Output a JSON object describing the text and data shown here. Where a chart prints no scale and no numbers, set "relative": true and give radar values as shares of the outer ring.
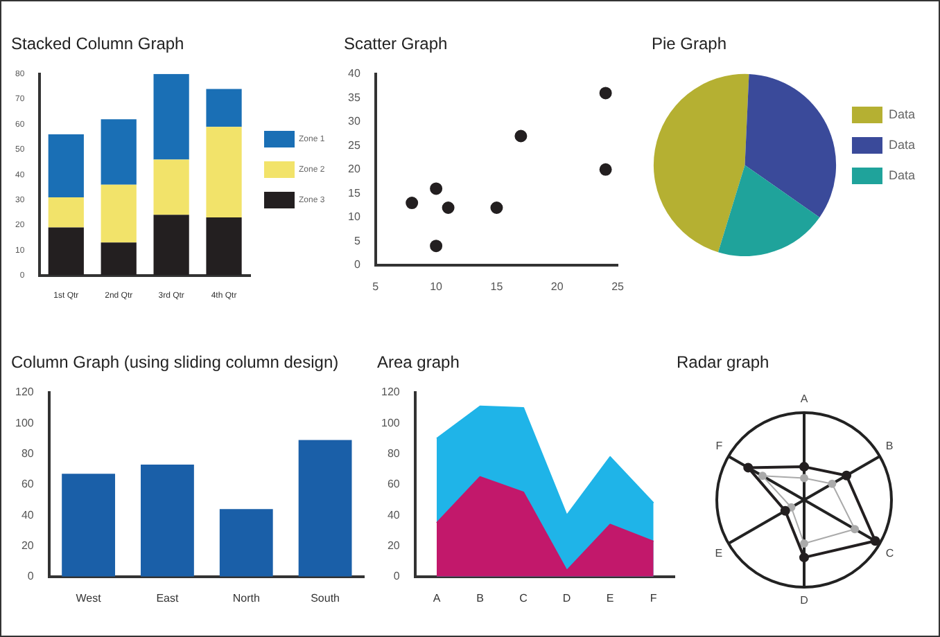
{
  "chart_data": [
    {
      "type": "bar",
      "title": "Stacked Column Graph",
      "categories": [
        "1st Qtr",
        "2nd Qtr",
        "3rd Qtr",
        "4th Qtr"
      ],
      "stacked": true,
      "legend": "right",
      "grid": false,
      "ylim": [
        0,
        80
      ],
      "yticks": [
        0,
        10,
        20,
        30,
        40,
        50,
        60,
        70,
        80
      ],
      "series": [
        {
          "name": "Zone 3",
          "color": "#231f20",
          "values": [
            19,
            13,
            24,
            23
          ]
        },
        {
          "name": "Zone 2",
          "color": "#f2e36a",
          "values": [
            12,
            23,
            22,
            36
          ]
        },
        {
          "name": "Zone 1",
          "color": "#1a6fb5",
          "values": [
            25,
            26,
            34,
            15
          ]
        }
      ]
    },
    {
      "type": "scatter",
      "title": "Scatter Graph",
      "grid": false,
      "marker": "circle",
      "xlim": [
        5,
        25
      ],
      "xticks": [
        5,
        10,
        15,
        20,
        25
      ],
      "ylim": [
        0,
        40
      ],
      "yticks": [
        0,
        5,
        10,
        15,
        20,
        25,
        30,
        35,
        40
      ],
      "x": [
        8,
        10,
        10,
        11,
        15,
        17,
        24,
        24
      ],
      "series": [
        {
          "color": "#231f20",
          "values": [
            13,
            16,
            4,
            12,
            12,
            27,
            36,
            20
          ]
        }
      ]
    },
    {
      "type": "pie",
      "title": "Pie Graph",
      "legend": "right",
      "categories": [
        "Data",
        "Data",
        "Data"
      ],
      "values": [
        46,
        34,
        20
      ],
      "colors": [
        "#b5b032",
        "#3a4a9a",
        "#1fa39b"
      ]
    },
    {
      "type": "bar",
      "title": "Column Graph (using sliding column design)",
      "grid": false,
      "categories": [
        "West",
        "East",
        "North",
        "South"
      ],
      "ylim": [
        0,
        120
      ],
      "yticks": [
        0,
        20,
        40,
        60,
        80,
        100,
        120
      ],
      "values": [
        67,
        73,
        44,
        89
      ],
      "color": "#1a5fa8"
    },
    {
      "type": "area",
      "title": "Area graph",
      "grid": false,
      "categories": [
        "A",
        "B",
        "C",
        "D",
        "E",
        "F"
      ],
      "ylim": [
        0,
        120
      ],
      "yticks": [
        0,
        20,
        40,
        60,
        80,
        100,
        120
      ],
      "series": [
        {
          "color": "#c2186b",
          "values": [
            35,
            65,
            55,
            4,
            34,
            23
          ]
        },
        {
          "color": "#1fb4e8",
          "values": [
            90,
            111,
            110,
            40,
            78,
            48
          ]
        }
      ]
    },
    {
      "type": "radar",
      "title": "Radar graph",
      "relative": true,
      "marker": "circle",
      "categories": [
        "A",
        "B",
        "C",
        "D",
        "E",
        "F"
      ],
      "series": [
        {
          "color": "#231f20",
          "values": [
            0.38,
            0.56,
            0.94,
            0.66,
            0.25,
            0.74
          ]
        },
        {
          "color": "#aaaaaa",
          "values": [
            0.25,
            0.37,
            0.67,
            0.5,
            0.17,
            0.55
          ]
        }
      ]
    }
  ]
}
